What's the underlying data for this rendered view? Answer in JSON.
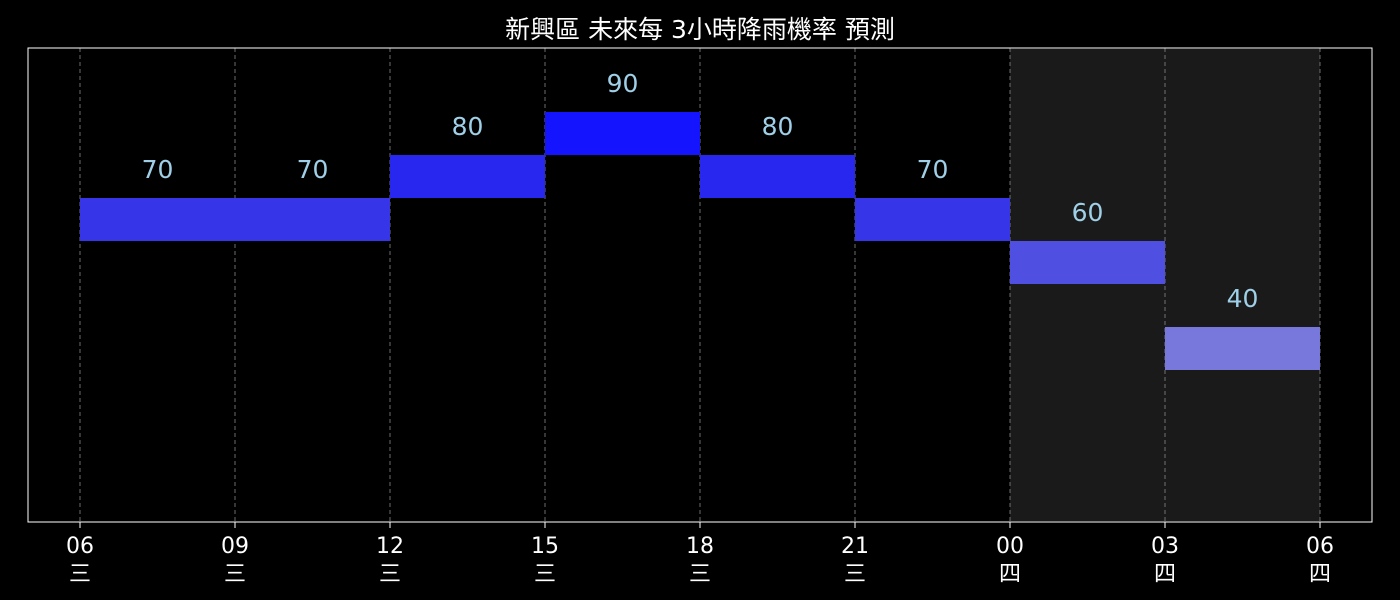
{
  "chart_data": {
    "type": "bar",
    "title": "新興區 未來每 3小時降雨機率 預測",
    "xlabel": "",
    "ylabel": "",
    "ylim": [
      0,
      100
    ],
    "grid": "vertical-dashed",
    "legend": "none",
    "x_ticks": [
      {
        "time": "06",
        "day": "三"
      },
      {
        "time": "09",
        "day": "三"
      },
      {
        "time": "12",
        "day": "三"
      },
      {
        "time": "15",
        "day": "三"
      },
      {
        "time": "18",
        "day": "三"
      },
      {
        "time": "21",
        "day": "三"
      },
      {
        "time": "00",
        "day": "四"
      },
      {
        "time": "03",
        "day": "四"
      },
      {
        "time": "06",
        "day": "四"
      }
    ],
    "categories": [
      "06-09 三",
      "09-12 三",
      "12-15 三",
      "15-18 三",
      "18-21 三",
      "21-00 三",
      "00-03 四",
      "03-06 四"
    ],
    "values": [
      70,
      70,
      80,
      90,
      80,
      70,
      60,
      40
    ],
    "night_shading": {
      "from": "00 四",
      "to": "06 四"
    }
  },
  "colors": {
    "background": "#000000",
    "axes_border": "#ffffff",
    "grid": "#888888",
    "night_band": "#1a1a1a",
    "label_text": "#9fd0e8",
    "bar_90": "#1414ff",
    "bar_80": "#2727f0",
    "bar_70": "#3636e8",
    "bar_60": "#4f4fe2",
    "bar_40": "#7878dc"
  }
}
